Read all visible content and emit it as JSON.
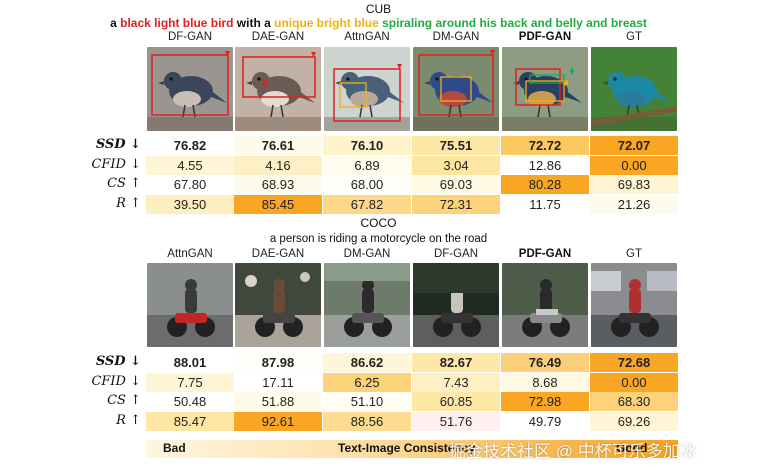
{
  "cub": {
    "title": "CUB",
    "caption": [
      {
        "text": "a ",
        "color": "#111111"
      },
      {
        "text": "black light blue bird",
        "color": "#e02020"
      },
      {
        "text": " with a ",
        "color": "#111111"
      },
      {
        "text": "unique bright blue",
        "color": "#f2b010"
      },
      {
        "text": " spiraling around his back and belly and breast",
        "color": "#22aa44"
      }
    ],
    "methods": [
      "DF-GAN",
      "DAE-GAN",
      "AttnGAN",
      "DM-GAN",
      "PDF-GAN",
      "GT"
    ],
    "metrics": [
      {
        "label": "SSD ↓",
        "values": [
          "76.82",
          "76.61",
          "76.10",
          "75.51",
          "72.72",
          "72.07"
        ],
        "bg": [
          "#ffffff",
          "#fffbea",
          "#fff3cc",
          "#fee8a8",
          "#fcc860",
          "#f8a624"
        ]
      },
      {
        "label": "CFID ↓",
        "values": [
          "4.55",
          "4.16",
          "6.89",
          "3.04",
          "12.86",
          "0.00"
        ],
        "bg": [
          "#fef5d6",
          "#fef0c6",
          "#fffcee",
          "#fde6a2",
          "#ffffff",
          "#f8a624"
        ]
      },
      {
        "label": "CS ↑",
        "values": [
          "67.80",
          "68.93",
          "68.00",
          "69.03",
          "80.28",
          "69.83"
        ],
        "bg": [
          "#ffffff",
          "#fffbea",
          "#fffef8",
          "#fffae4",
          "#f8a624",
          "#fff5d4"
        ]
      },
      {
        "label": "R ↑",
        "values": [
          "39.50",
          "85.45",
          "67.82",
          "72.31",
          "11.75",
          "21.26"
        ],
        "bg": [
          "#fdefc0",
          "#f8a624",
          "#fdd88a",
          "#fcd27a",
          "#ffffff",
          "#fffaee"
        ]
      }
    ]
  },
  "coco": {
    "title": "COCO",
    "caption": "a person is riding a motorcycle on the road",
    "methods": [
      "AttnGAN",
      "DAE-GAN",
      "DM-GAN",
      "DF-GAN",
      "PDF-GAN",
      "GT"
    ],
    "metrics": [
      {
        "label": "SSD ↓",
        "values": [
          "88.01",
          "87.98",
          "86.62",
          "82.67",
          "76.49",
          "72.68"
        ],
        "bg": [
          "#ffffff",
          "#fffef8",
          "#fff6da",
          "#fee8a8",
          "#fcd07a",
          "#f8a624"
        ]
      },
      {
        "label": "CFID ↓",
        "values": [
          "7.75",
          "17.11",
          "6.25",
          "7.43",
          "8.68",
          "0.00"
        ],
        "bg": [
          "#fff6d8",
          "#ffffff",
          "#fcd27a",
          "#fff0c4",
          "#fff8e2",
          "#f8a624"
        ]
      },
      {
        "label": "CS ↑",
        "values": [
          "50.48",
          "51.88",
          "51.10",
          "60.85",
          "72.98",
          "68.30"
        ],
        "bg": [
          "#ffffff",
          "#fffbea",
          "#fffdf4",
          "#fee8a8",
          "#f8a624",
          "#fcd27a"
        ]
      },
      {
        "label": "R ↑",
        "values": [
          "85.47",
          "92.61",
          "88.56",
          "51.76",
          "49.79",
          "69.26"
        ],
        "bg": [
          "#fee6a4",
          "#f8a624",
          "#fddb90",
          "#fdf0ef",
          "#ffffff",
          "#fff5d6"
        ]
      }
    ]
  },
  "scale": {
    "left_label": "Bad",
    "center_label": "Text-Image Consistency",
    "right_label": "Good",
    "gradient_from": "#fff6e0",
    "gradient_to": "#f7a21b"
  },
  "watermark": "掘金技术社区 @ 中杯可乐多加冰"
}
